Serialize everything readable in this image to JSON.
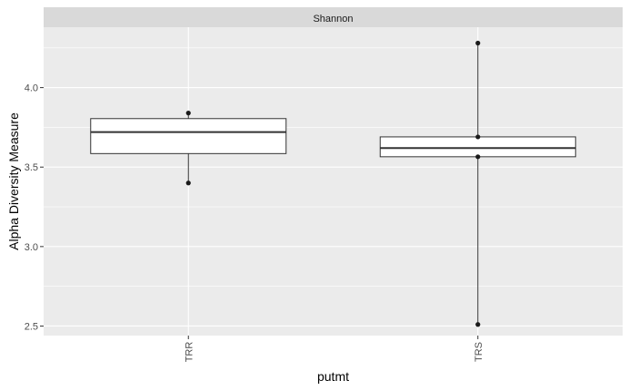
{
  "chart_data": {
    "type": "box",
    "facet": "Shannon",
    "xlabel": "putmt",
    "ylabel": "Alpha Diversity Measure",
    "ylim": [
      2.44,
      4.38
    ],
    "yticks": [
      2.5,
      3.0,
      3.5,
      4.0
    ],
    "ytick_labels": [
      "2.5",
      "3.0",
      "3.5",
      "4.0"
    ],
    "categories": [
      "TRR",
      "TRS"
    ],
    "boxes": [
      {
        "category": "TRR",
        "min": 3.4,
        "q1": 3.585,
        "median": 3.72,
        "q3": 3.805,
        "max": 3.84,
        "points": [
          3.84,
          3.4
        ]
      },
      {
        "category": "TRS",
        "min": 2.51,
        "q1": 3.565,
        "median": 3.62,
        "q3": 3.69,
        "max": 4.28,
        "points": [
          4.28,
          3.69,
          3.565,
          2.51
        ]
      }
    ],
    "grid": true,
    "colors": {
      "panel": "#ebebeb",
      "strip": "#d9d9d9",
      "grid": "#ffffff",
      "box_fill": "#ffffff",
      "box_line": "#333333",
      "point": "#1a1a1a"
    }
  }
}
